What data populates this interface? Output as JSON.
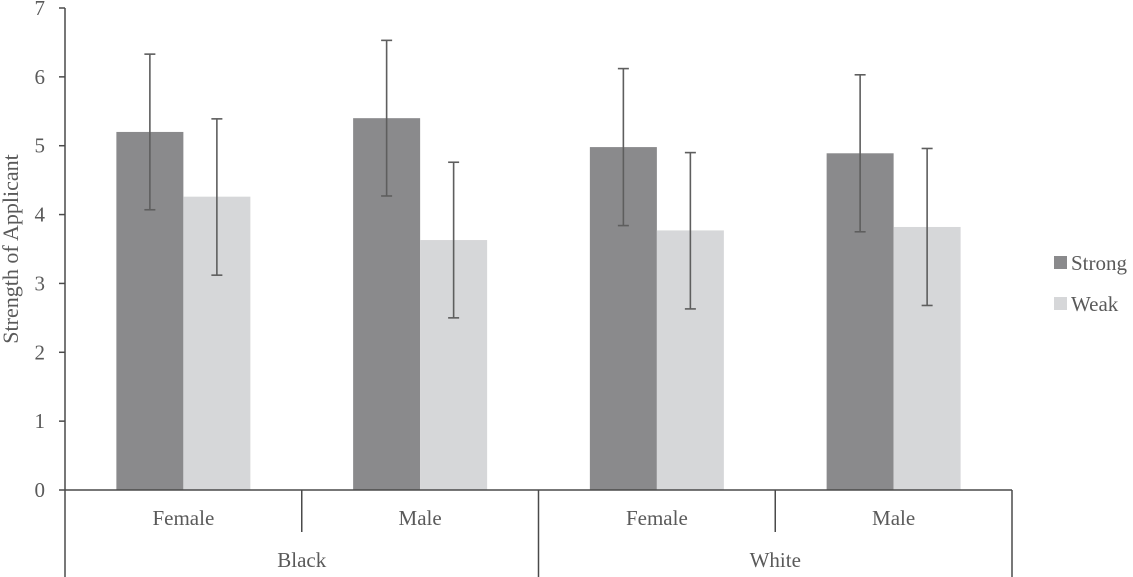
{
  "chart_data": {
    "type": "bar",
    "title": "",
    "xlabel": "",
    "ylabel": "Strength of Applicant",
    "ylim": [
      0,
      7
    ],
    "yticks": [
      "0",
      "1",
      "2",
      "3",
      "4",
      "5",
      "6",
      "7"
    ],
    "grid": false,
    "legend_position": "right",
    "groups": [
      {
        "label": "Black",
        "categories": [
          "Female",
          "Male"
        ]
      },
      {
        "label": "White",
        "categories": [
          "Female",
          "Male"
        ]
      }
    ],
    "categories": [
      "Female",
      "Male",
      "Female",
      "Male"
    ],
    "series": [
      {
        "name": "Strong",
        "color": "#8a8a8c",
        "values": [
          5.2,
          5.4,
          4.98,
          4.89
        ],
        "error_low": [
          4.07,
          4.27,
          3.84,
          3.75
        ],
        "error_high": [
          6.33,
          6.53,
          6.12,
          6.03
        ]
      },
      {
        "name": "Weak",
        "color": "#d6d7d9",
        "values": [
          4.26,
          3.63,
          3.77,
          3.82
        ],
        "error_low": [
          3.12,
          2.5,
          2.63,
          2.68
        ],
        "error_high": [
          5.39,
          4.76,
          4.9,
          4.96
        ]
      }
    ],
    "axis_color": "#4a4a4a",
    "error_bar_color": "#5e5e5e"
  }
}
